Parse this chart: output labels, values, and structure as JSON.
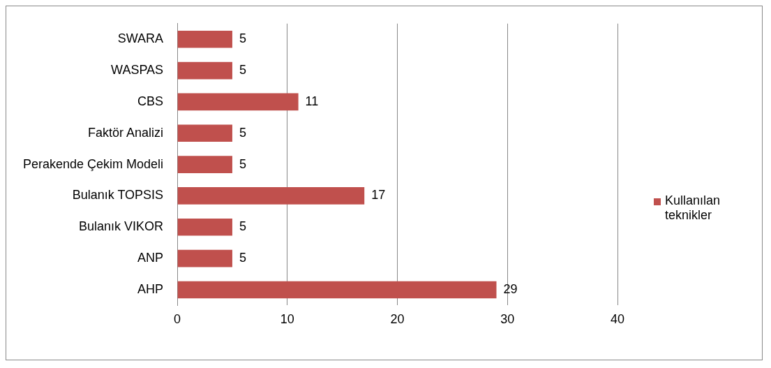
{
  "chart_data": {
    "type": "bar",
    "orientation": "horizontal",
    "categories": [
      "SWARA",
      "WASPAS",
      "CBS",
      "Faktör Analizi",
      "Perakende Çekim Modeli",
      "Bulanık TOPSIS",
      "Bulanık VIKOR",
      "ANP",
      "AHP"
    ],
    "series": [
      {
        "name": "Kullanılan teknikler",
        "color": "#c0504d",
        "values": [
          5,
          5,
          11,
          5,
          5,
          17,
          5,
          5,
          29
        ]
      }
    ],
    "xlim": [
      0,
      40
    ],
    "xticks": [
      0,
      10,
      20,
      30,
      40
    ],
    "grid": "x",
    "legend": "right",
    "data_labels": true
  }
}
